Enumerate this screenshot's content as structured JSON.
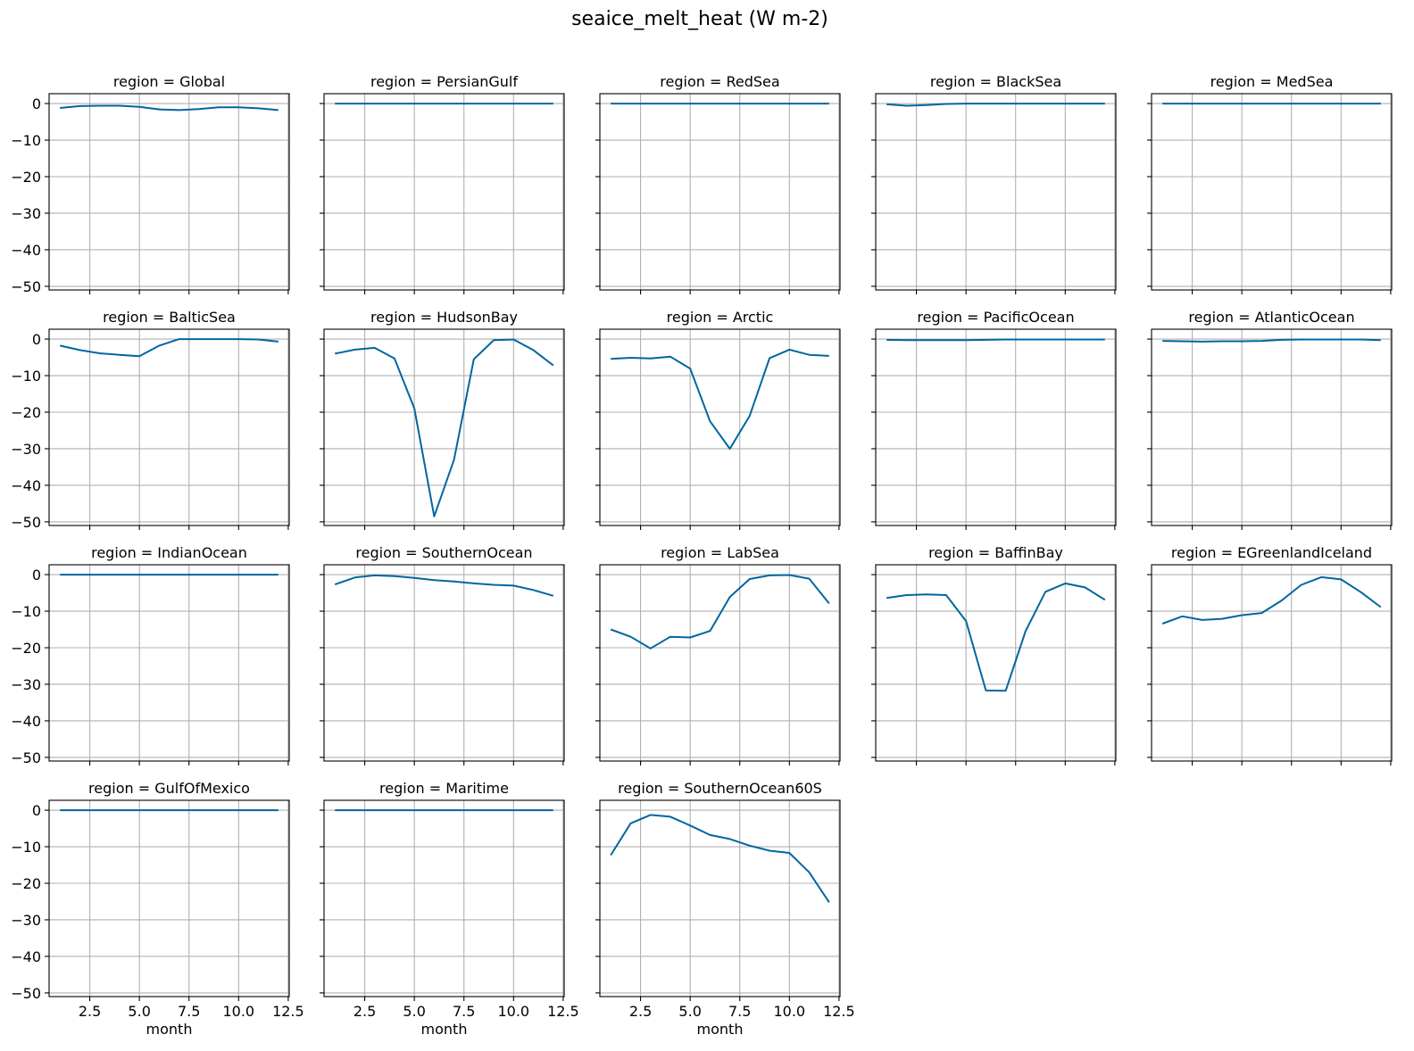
{
  "figure_title": "seaice_melt_heat (W m-2)",
  "chart_data": {
    "type": "line",
    "layout": "facet-grid",
    "facet_label_prefix": "region = ",
    "xlabel": "month",
    "xlim": [
      0.45,
      12.55
    ],
    "xticks": [
      2.5,
      5.0,
      7.5,
      10.0,
      12.5
    ],
    "xtick_labels": [
      "2.5",
      "5.0",
      "7.5",
      "10.0",
      "12.5"
    ],
    "ylim": [
      2.7,
      -51
    ],
    "yticks": [
      0,
      -10,
      -20,
      -30,
      -40,
      -50
    ],
    "ytick_labels": [
      "0",
      "−10",
      "−20",
      "−30",
      "−40",
      "−50"
    ],
    "y_inverted": true,
    "grid": true,
    "line_color": "#0066a0",
    "x": [
      1,
      2,
      3,
      4,
      5,
      6,
      7,
      8,
      9,
      10,
      11,
      12
    ],
    "panels": [
      {
        "region": "Global",
        "values": [
          -1.2,
          -0.7,
          -0.6,
          -0.6,
          -0.9,
          -1.6,
          -1.8,
          -1.5,
          -1.0,
          -1.0,
          -1.3,
          -1.8
        ]
      },
      {
        "region": "PersianGulf",
        "values": [
          0,
          0,
          0,
          0,
          0,
          0,
          0,
          0,
          0,
          0,
          0,
          0
        ]
      },
      {
        "region": "RedSea",
        "values": [
          0,
          0,
          0,
          0,
          0,
          0,
          0,
          0,
          0,
          0,
          0,
          0
        ]
      },
      {
        "region": "BlackSea",
        "values": [
          -0.2,
          -0.6,
          -0.4,
          -0.1,
          0,
          0,
          0,
          0,
          0,
          0,
          0,
          0
        ]
      },
      {
        "region": "MedSea",
        "values": [
          0,
          0,
          0,
          0,
          0,
          0,
          0,
          0,
          0,
          0,
          0,
          0
        ]
      },
      {
        "region": "BalticSea",
        "values": [
          -1.8,
          -3.0,
          -3.9,
          -4.3,
          -4.7,
          -1.8,
          0,
          0,
          0,
          0,
          -0.1,
          -0.7
        ]
      },
      {
        "region": "HudsonBay",
        "values": [
          -4.0,
          -2.9,
          -2.4,
          -5.3,
          -19.0,
          -48.5,
          -33.0,
          -5.5,
          -0.3,
          -0.1,
          -3.0,
          -7.2
        ]
      },
      {
        "region": "Arctic",
        "values": [
          -5.4,
          -5.1,
          -5.3,
          -4.8,
          -8.1,
          -22.5,
          -30.0,
          -21.0,
          -5.2,
          -2.9,
          -4.3,
          -4.6
        ]
      },
      {
        "region": "PacificOcean",
        "values": [
          -0.2,
          -0.3,
          -0.3,
          -0.3,
          -0.3,
          -0.2,
          -0.1,
          -0.1,
          -0.1,
          -0.1,
          -0.1,
          -0.1
        ]
      },
      {
        "region": "AtlanticOcean",
        "values": [
          -0.5,
          -0.6,
          -0.7,
          -0.6,
          -0.6,
          -0.5,
          -0.2,
          -0.1,
          -0.1,
          -0.1,
          -0.1,
          -0.3
        ]
      },
      {
        "region": "IndianOcean",
        "values": [
          0,
          0,
          0,
          0,
          0,
          0,
          0,
          0,
          0,
          0,
          0,
          0
        ]
      },
      {
        "region": "SouthernOcean",
        "values": [
          -2.7,
          -0.8,
          -0.2,
          -0.4,
          -0.9,
          -1.5,
          -1.9,
          -2.4,
          -2.8,
          -3.0,
          -4.2,
          -5.8
        ]
      },
      {
        "region": "LabSea",
        "values": [
          -15.0,
          -17.0,
          -20.2,
          -17.0,
          -17.2,
          -15.4,
          -6.1,
          -1.2,
          -0.2,
          -0.1,
          -1.1,
          -7.9
        ]
      },
      {
        "region": "BaffinBay",
        "values": [
          -6.4,
          -5.6,
          -5.4,
          -5.6,
          -12.7,
          -31.7,
          -31.8,
          -15.5,
          -4.7,
          -2.4,
          -3.5,
          -6.9
        ]
      },
      {
        "region": "EGreenlandIceland",
        "values": [
          -13.4,
          -11.4,
          -12.4,
          -12.1,
          -11.1,
          -10.5,
          -7.1,
          -2.8,
          -0.7,
          -1.3,
          -4.8,
          -8.9
        ]
      },
      {
        "region": "GulfOfMexico",
        "values": [
          0,
          0,
          0,
          0,
          0,
          0,
          0,
          0,
          0,
          0,
          0,
          0
        ]
      },
      {
        "region": "Maritime",
        "values": [
          0,
          0,
          0,
          0,
          0,
          0,
          0,
          0,
          0,
          0,
          0,
          0
        ]
      },
      {
        "region": "SouthernOcean60S",
        "values": [
          -12.3,
          -3.6,
          -1.3,
          -1.8,
          -4.2,
          -6.8,
          -7.9,
          -9.7,
          -11.1,
          -11.7,
          -17.0,
          -25.2
        ]
      }
    ]
  }
}
